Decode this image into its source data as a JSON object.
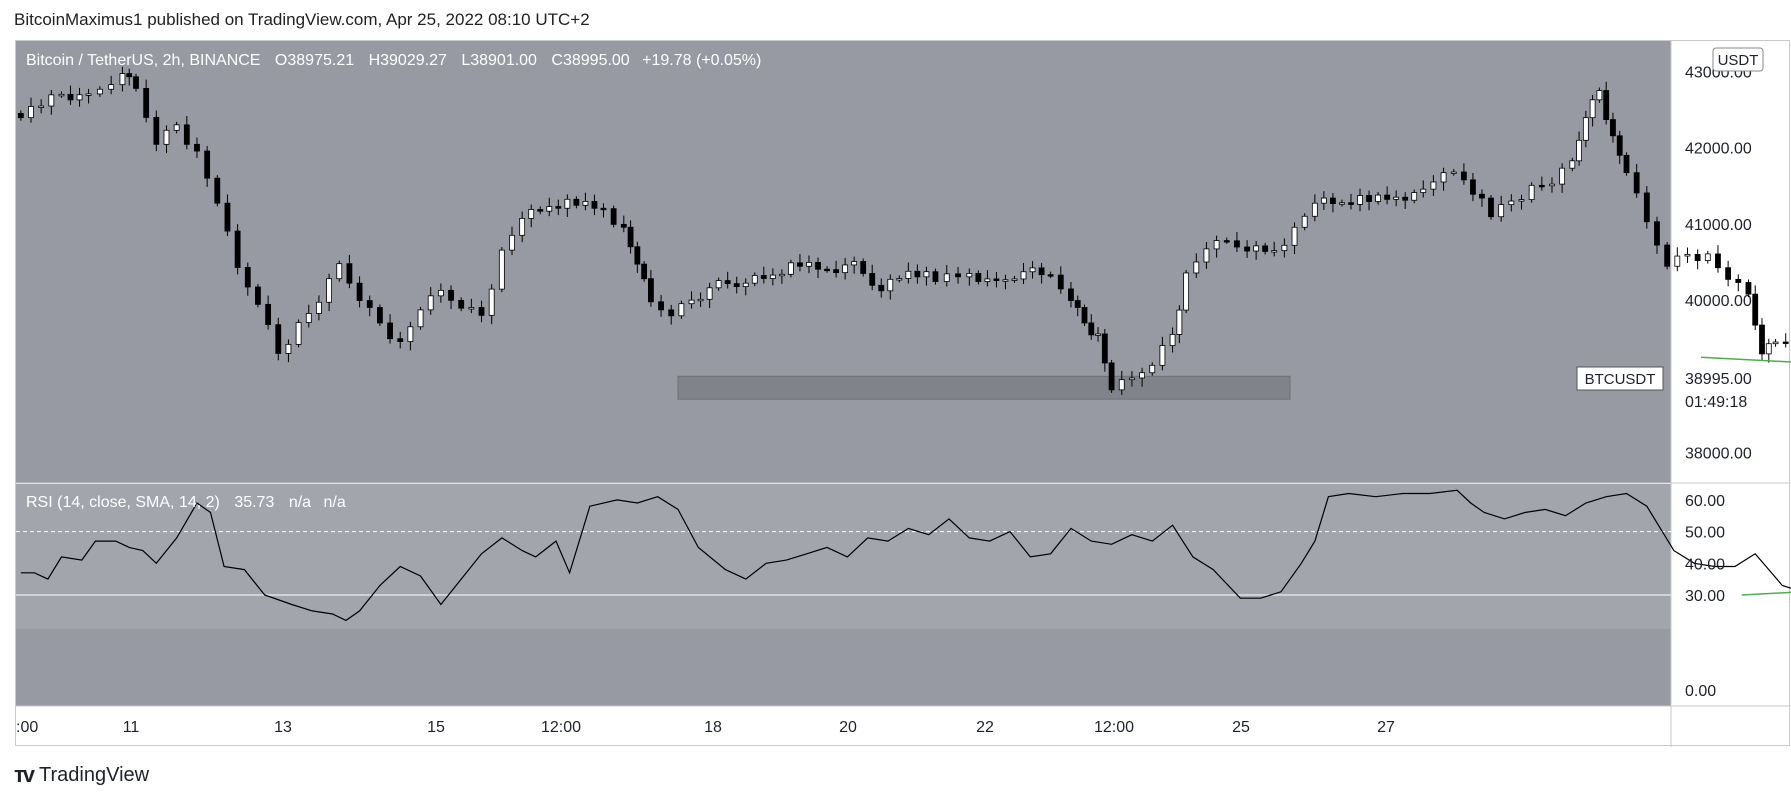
{
  "header": {
    "publisher_line": "BitcoinMaximus1 published on TradingView.com, Apr 25, 2022 08:10 UTC+2"
  },
  "footer": {
    "brand": "TradingView",
    "logo": "tv-logo-icon"
  },
  "colors": {
    "pane_bg": "#9799a3",
    "rsi_band": "#a3a5ad",
    "candle_up": "#ffffff",
    "candle_down": "#000000",
    "support_box": "#7f8189",
    "trendline": "#4caf50",
    "dash": "#ffffff"
  },
  "legend": {
    "symbol": "Bitcoin / TetherUS, 2h, BINANCE",
    "o_label": "O",
    "o_value": "38975.21",
    "h_label": "H",
    "h_value": "39029.27",
    "l_label": "L",
    "l_value": "38901.00",
    "c_label": "C",
    "c_value": "38995.00",
    "change": "+19.78 (+0.05%)"
  },
  "price_axis": {
    "currency": "USDT",
    "ticks": [
      "43000.00",
      "42000.00",
      "41000.00",
      "40000.00",
      "38000.00"
    ],
    "tag_symbol": "BTCUSDT",
    "tag_price": "38995.00",
    "tag_countdown": "01:49:18"
  },
  "rsi": {
    "legend": "RSI (14, close, SMA, 14, 2)",
    "value": "35.73",
    "na1": "n/a",
    "na2": "n/a",
    "ticks": [
      "60.00",
      "50.00",
      "40.00",
      "30.00",
      "0.00"
    ]
  },
  "time_axis": {
    "ticks": [
      ":00",
      "11",
      "13",
      "15",
      "12:00",
      "18",
      "20",
      "22",
      "12:00",
      "25",
      "27"
    ]
  },
  "chart_data": [
    {
      "type": "candlestick",
      "title": "Bitcoin / TetherUS, 2h, BINANCE",
      "ylim": [
        37600,
        43400
      ],
      "x_categories": [
        ":00",
        "11",
        "13",
        "15",
        "12:00",
        "18",
        "20",
        "22",
        "12:00",
        "25",
        "27"
      ],
      "support_zone": [
        38700,
        39000
      ],
      "trendline": [
        [
          22.4,
          39250
        ],
        [
          25.3,
          38980
        ]
      ],
      "series": [
        {
          "name": "BTCUSDT",
          "close_path": [
            [
              10.0,
              42450
            ],
            [
              10.3,
              42700
            ],
            [
              10.5,
              42650
            ],
            [
              10.75,
              43000
            ],
            [
              10.85,
              42750
            ],
            [
              11.0,
              42100
            ],
            [
              11.15,
              42300
            ],
            [
              11.3,
              41900
            ],
            [
              11.45,
              41300
            ],
            [
              11.6,
              40400
            ],
            [
              11.75,
              40000
            ],
            [
              11.9,
              39300
            ],
            [
              12.05,
              39650
            ],
            [
              12.2,
              40000
            ],
            [
              12.35,
              40450
            ],
            [
              12.5,
              40050
            ],
            [
              12.65,
              39700
            ],
            [
              12.8,
              39400
            ],
            [
              12.95,
              39900
            ],
            [
              13.1,
              40100
            ],
            [
              13.25,
              39950
            ],
            [
              13.4,
              39800
            ],
            [
              13.55,
              40600
            ],
            [
              13.7,
              41100
            ],
            [
              13.9,
              41200
            ],
            [
              14.1,
              41300
            ],
            [
              14.3,
              41200
            ],
            [
              14.45,
              40900
            ],
            [
              14.55,
              40500
            ],
            [
              14.65,
              39950
            ],
            [
              14.8,
              39850
            ],
            [
              14.95,
              40000
            ],
            [
              15.15,
              40200
            ],
            [
              15.35,
              40250
            ],
            [
              15.55,
              40300
            ],
            [
              15.75,
              40500
            ],
            [
              15.95,
              40400
            ],
            [
              16.15,
              40450
            ],
            [
              16.35,
              40150
            ],
            [
              16.55,
              40350
            ],
            [
              16.75,
              40300
            ],
            [
              17.0,
              40350
            ],
            [
              17.2,
              40200
            ],
            [
              17.4,
              40400
            ],
            [
              17.6,
              40300
            ],
            [
              17.75,
              40050
            ],
            [
              17.85,
              39700
            ],
            [
              17.95,
              39500
            ],
            [
              18.05,
              38850
            ],
            [
              18.2,
              38950
            ],
            [
              18.35,
              39200
            ],
            [
              18.5,
              39550
            ],
            [
              18.6,
              40300
            ],
            [
              18.75,
              40700
            ],
            [
              18.9,
              40750
            ],
            [
              19.05,
              40700
            ],
            [
              19.25,
              40650
            ],
            [
              19.4,
              40900
            ],
            [
              19.55,
              41300
            ],
            [
              19.75,
              41250
            ],
            [
              19.95,
              41350
            ],
            [
              20.15,
              41350
            ],
            [
              20.35,
              41400
            ],
            [
              20.5,
              41700
            ],
            [
              20.65,
              41550
            ],
            [
              20.85,
              41150
            ],
            [
              21.0,
              41300
            ],
            [
              21.15,
              41450
            ],
            [
              21.3,
              41550
            ],
            [
              21.45,
              41800
            ],
            [
              21.55,
              42450
            ],
            [
              21.65,
              42750
            ],
            [
              21.75,
              42100
            ],
            [
              21.85,
              41700
            ],
            [
              22.0,
              41000
            ],
            [
              22.15,
              40500
            ],
            [
              22.3,
              40600
            ],
            [
              22.45,
              40550
            ],
            [
              22.6,
              40300
            ],
            [
              22.75,
              40050
            ],
            [
              22.85,
              39350
            ],
            [
              22.95,
              39450
            ],
            [
              23.1,
              39550
            ],
            [
              23.25,
              39500
            ],
            [
              23.45,
              39550
            ],
            [
              23.6,
              39650
            ],
            [
              23.75,
              39800
            ],
            [
              23.9,
              39850
            ],
            [
              24.05,
              39800
            ],
            [
              24.2,
              39500
            ],
            [
              24.35,
              39650
            ],
            [
              24.5,
              39700
            ],
            [
              24.65,
              39800
            ],
            [
              24.8,
              39600
            ],
            [
              24.95,
              39700
            ],
            [
              25.05,
              39350
            ],
            [
              25.15,
              39250
            ],
            [
              25.25,
              39200
            ],
            [
              25.35,
              38995
            ]
          ]
        }
      ]
    },
    {
      "type": "line",
      "title": "RSI (14, close, SMA, 14, 2)",
      "ylim": [
        -5,
        65
      ],
      "reference_lines": [
        30,
        50
      ],
      "trendline": [
        [
          22.7,
          30
        ],
        [
          25.4,
          36
        ]
      ],
      "series": [
        {
          "name": "RSI",
          "points": [
            [
              10.0,
              37
            ],
            [
              10.1,
              37
            ],
            [
              10.2,
              35
            ],
            [
              10.3,
              42
            ],
            [
              10.45,
              41
            ],
            [
              10.55,
              47
            ],
            [
              10.7,
              47
            ],
            [
              10.8,
              45
            ],
            [
              10.9,
              44
            ],
            [
              11.0,
              40
            ],
            [
              11.15,
              48
            ],
            [
              11.3,
              59
            ],
            [
              11.4,
              56
            ],
            [
              11.5,
              39
            ],
            [
              11.65,
              38
            ],
            [
              11.8,
              30
            ],
            [
              12.0,
              27
            ],
            [
              12.15,
              25
            ],
            [
              12.3,
              24
            ],
            [
              12.4,
              22
            ],
            [
              12.5,
              25
            ],
            [
              12.65,
              33
            ],
            [
              12.8,
              39
            ],
            [
              12.95,
              36
            ],
            [
              13.1,
              27
            ],
            [
              13.25,
              35
            ],
            [
              13.4,
              43
            ],
            [
              13.55,
              48
            ],
            [
              13.7,
              44
            ],
            [
              13.8,
              42
            ],
            [
              13.95,
              47
            ],
            [
              14.05,
              37
            ],
            [
              14.2,
              58
            ],
            [
              14.4,
              60
            ],
            [
              14.55,
              59
            ],
            [
              14.7,
              61
            ],
            [
              14.85,
              57
            ],
            [
              15.0,
              45
            ],
            [
              15.2,
              38
            ],
            [
              15.35,
              35
            ],
            [
              15.5,
              40
            ],
            [
              15.65,
              41
            ],
            [
              15.8,
              43
            ],
            [
              15.95,
              45
            ],
            [
              16.1,
              42
            ],
            [
              16.25,
              48
            ],
            [
              16.4,
              47
            ],
            [
              16.55,
              51
            ],
            [
              16.7,
              49
            ],
            [
              16.85,
              54
            ],
            [
              17.0,
              48
            ],
            [
              17.15,
              47
            ],
            [
              17.3,
              50
            ],
            [
              17.45,
              42
            ],
            [
              17.6,
              43
            ],
            [
              17.75,
              51
            ],
            [
              17.9,
              47
            ],
            [
              18.05,
              46
            ],
            [
              18.2,
              49
            ],
            [
              18.35,
              47
            ],
            [
              18.5,
              52
            ],
            [
              18.65,
              42
            ],
            [
              18.8,
              38
            ],
            [
              19.0,
              29
            ],
            [
              19.15,
              29
            ],
            [
              19.3,
              31
            ],
            [
              19.45,
              40
            ],
            [
              19.55,
              47
            ],
            [
              19.65,
              61
            ],
            [
              19.8,
              62
            ],
            [
              20.0,
              61
            ],
            [
              20.2,
              62
            ],
            [
              20.4,
              62
            ],
            [
              20.6,
              63
            ],
            [
              20.7,
              59
            ],
            [
              20.8,
              56
            ],
            [
              20.95,
              54
            ],
            [
              21.1,
              56
            ],
            [
              21.25,
              57
            ],
            [
              21.4,
              55
            ],
            [
              21.55,
              59
            ],
            [
              21.7,
              61
            ],
            [
              21.85,
              62
            ],
            [
              22.0,
              58
            ],
            [
              22.1,
              51
            ],
            [
              22.2,
              44
            ],
            [
              22.35,
              40
            ],
            [
              22.5,
              39
            ],
            [
              22.65,
              39
            ],
            [
              22.8,
              43
            ],
            [
              22.9,
              38
            ],
            [
              23.0,
              33
            ],
            [
              23.15,
              31
            ],
            [
              23.3,
              32
            ],
            [
              23.45,
              35
            ],
            [
              23.6,
              36
            ],
            [
              23.75,
              35
            ],
            [
              23.9,
              37
            ],
            [
              24.05,
              36
            ],
            [
              24.2,
              38
            ],
            [
              24.35,
              41
            ],
            [
              24.5,
              42
            ],
            [
              24.6,
              40
            ],
            [
              24.75,
              43
            ],
            [
              24.9,
              38
            ],
            [
              25.05,
              44
            ],
            [
              25.2,
              40
            ],
            [
              25.3,
              43
            ],
            [
              25.4,
              37
            ],
            [
              25.5,
              35
            ],
            [
              25.6,
              36
            ]
          ]
        }
      ]
    }
  ]
}
